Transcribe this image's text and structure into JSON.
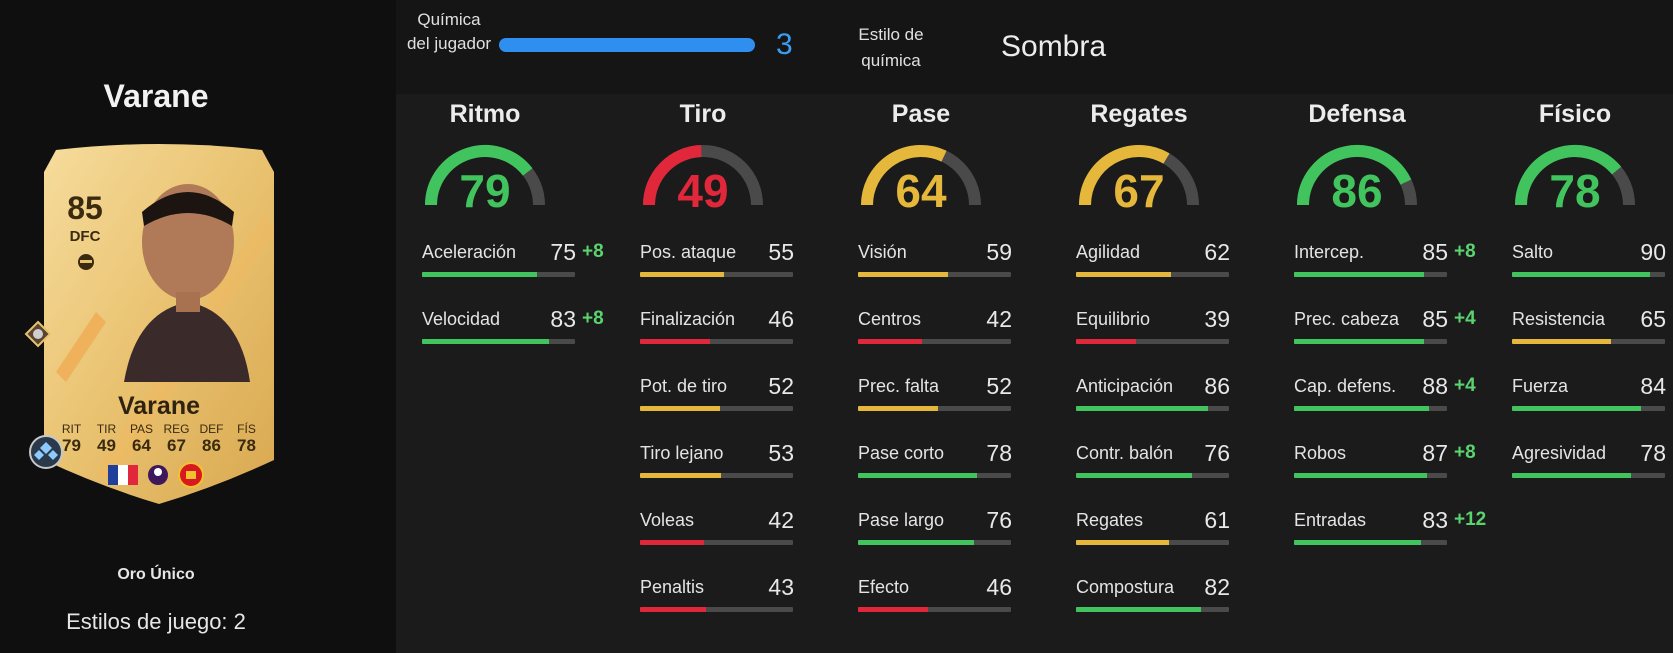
{
  "player": {
    "name": "Varane",
    "rating": "85",
    "position": "DFC",
    "card_name": "Varane",
    "card_stats": [
      {
        "label": "RIT",
        "value": "79"
      },
      {
        "label": "TIR",
        "value": "49"
      },
      {
        "label": "PAS",
        "value": "64"
      },
      {
        "label": "REG",
        "value": "67"
      },
      {
        "label": "DEF",
        "value": "86"
      },
      {
        "label": "FÍS",
        "value": "78"
      }
    ],
    "rarity": "Oro Único",
    "playstyles": "Estilos de juego: 2"
  },
  "chemistry": {
    "label": "Química del jugador",
    "value": "3",
    "fill": 1.0,
    "style_label": "Estilo de química",
    "style_value": "Sombra"
  },
  "colors": {
    "green": "#41c45d",
    "yellow": "#e5b83c",
    "red": "#e0283a",
    "bonus": "#5ad36e",
    "chem_blue": "#2f8ff0"
  },
  "categories": [
    {
      "title": "Ritmo",
      "value": "79",
      "color": "green",
      "stats": [
        {
          "name": "Aceleración",
          "value": "75",
          "bonus": "+8",
          "color": "green"
        },
        {
          "name": "Velocidad",
          "value": "83",
          "bonus": "+8",
          "color": "green"
        }
      ]
    },
    {
      "title": "Tiro",
      "value": "49",
      "color": "red",
      "stats": [
        {
          "name": "Pos. ataque",
          "value": "55",
          "bonus": "",
          "color": "yellow"
        },
        {
          "name": "Finalización",
          "value": "46",
          "bonus": "",
          "color": "red"
        },
        {
          "name": "Pot. de tiro",
          "value": "52",
          "bonus": "",
          "color": "yellow"
        },
        {
          "name": "Tiro lejano",
          "value": "53",
          "bonus": "",
          "color": "yellow"
        },
        {
          "name": "Voleas",
          "value": "42",
          "bonus": "",
          "color": "red"
        },
        {
          "name": "Penaltis",
          "value": "43",
          "bonus": "",
          "color": "red"
        }
      ]
    },
    {
      "title": "Pase",
      "value": "64",
      "color": "yellow",
      "stats": [
        {
          "name": "Visión",
          "value": "59",
          "bonus": "",
          "color": "yellow"
        },
        {
          "name": "Centros",
          "value": "42",
          "bonus": "",
          "color": "red"
        },
        {
          "name": "Prec. falta",
          "value": "52",
          "bonus": "",
          "color": "yellow"
        },
        {
          "name": "Pase corto",
          "value": "78",
          "bonus": "",
          "color": "green"
        },
        {
          "name": "Pase largo",
          "value": "76",
          "bonus": "",
          "color": "green"
        },
        {
          "name": "Efecto",
          "value": "46",
          "bonus": "",
          "color": "red"
        }
      ]
    },
    {
      "title": "Regates",
      "value": "67",
      "color": "yellow",
      "stats": [
        {
          "name": "Agilidad",
          "value": "62",
          "bonus": "",
          "color": "yellow"
        },
        {
          "name": "Equilibrio",
          "value": "39",
          "bonus": "",
          "color": "red"
        },
        {
          "name": "Anticipación",
          "value": "86",
          "bonus": "",
          "color": "green"
        },
        {
          "name": "Contr. balón",
          "value": "76",
          "bonus": "",
          "color": "green"
        },
        {
          "name": "Regates",
          "value": "61",
          "bonus": "",
          "color": "yellow"
        },
        {
          "name": "Compostura",
          "value": "82",
          "bonus": "",
          "color": "green"
        }
      ]
    },
    {
      "title": "Defensa",
      "value": "86",
      "color": "green",
      "stats": [
        {
          "name": "Intercep.",
          "value": "85",
          "bonus": "+8",
          "color": "green"
        },
        {
          "name": "Prec. cabeza",
          "value": "85",
          "bonus": "+4",
          "color": "green"
        },
        {
          "name": "Cap. defens.",
          "value": "88",
          "bonus": "+4",
          "color": "green"
        },
        {
          "name": "Robos",
          "value": "87",
          "bonus": "+8",
          "color": "green"
        },
        {
          "name": "Entradas",
          "value": "83",
          "bonus": "+12",
          "color": "green"
        }
      ]
    },
    {
      "title": "Físico",
      "value": "78",
      "color": "green",
      "stats": [
        {
          "name": "Salto",
          "value": "90",
          "bonus": "",
          "color": "green"
        },
        {
          "name": "Resistencia",
          "value": "65",
          "bonus": "",
          "color": "yellow"
        },
        {
          "name": "Fuerza",
          "value": "84",
          "bonus": "",
          "color": "green"
        },
        {
          "name": "Agresividad",
          "value": "78",
          "bonus": "",
          "color": "green"
        }
      ]
    }
  ]
}
